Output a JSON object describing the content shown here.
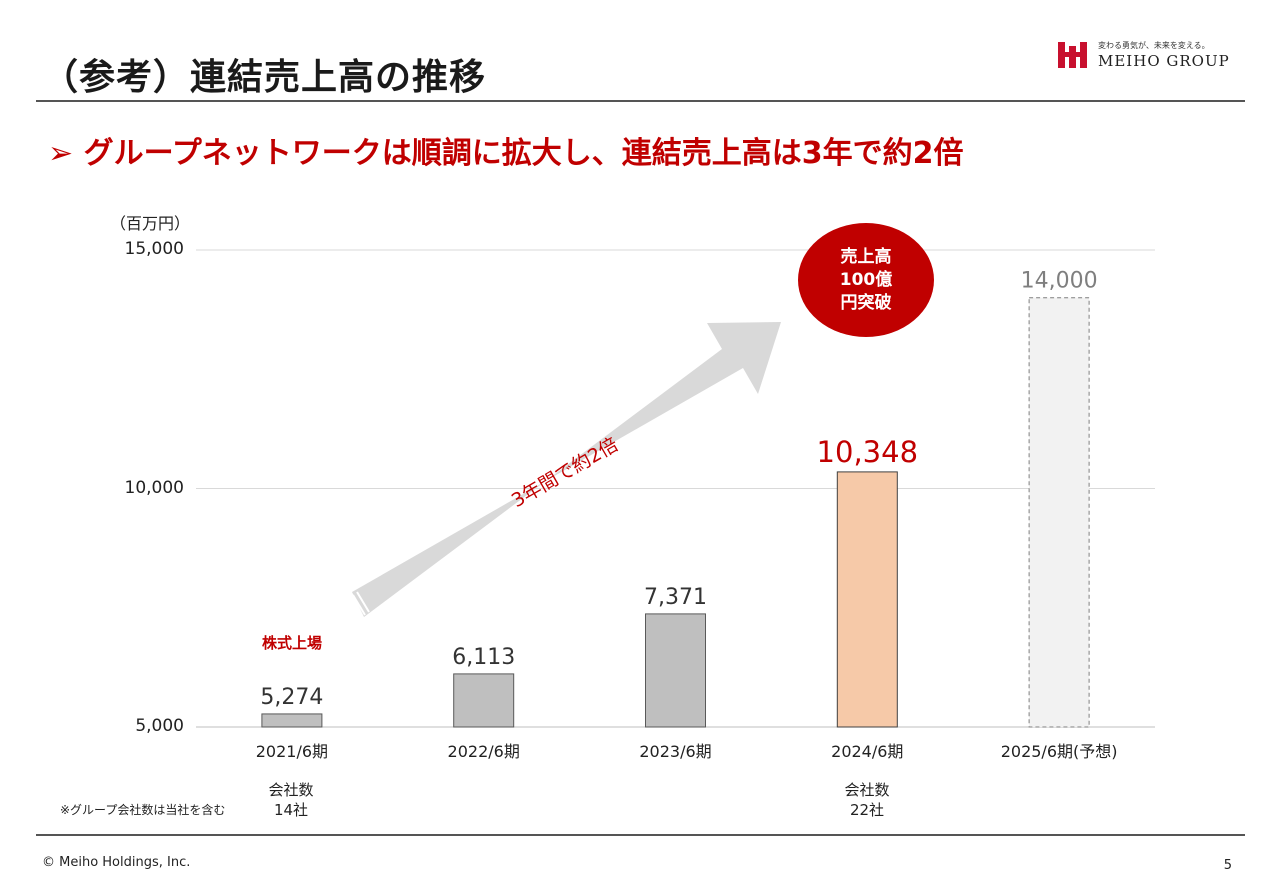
{
  "slide": {
    "title": "（参考）連結売上高の推移",
    "headline": "➢ グループネットワークは順調に拡大し、連結売上高は3年で約2倍",
    "logo_tagline": "変わる勇気が、未来を変える。",
    "logo_name": "MEIHO GROUP",
    "footer": "© Meiho Holdings, Inc.",
    "page_number": "5"
  },
  "chart_data": {
    "type": "bar",
    "unit": "（百万円）",
    "categories": [
      "2021/6期",
      "2022/6期",
      "2023/6期",
      "2024/6期",
      "2025/6期(予想)"
    ],
    "values": [
      5274,
      6113,
      7371,
      10348,
      14000
    ],
    "value_labels": [
      "5,274",
      "6,113",
      "7,371",
      "10,348",
      "14,000"
    ],
    "yticks": [
      5000,
      10000,
      15000
    ],
    "ytick_labels": [
      "5,000",
      "10,000",
      "15,000"
    ],
    "ylim": [
      5000,
      15000
    ],
    "bar_styles": [
      "actual",
      "actual",
      "actual",
      "highlight",
      "forecast"
    ],
    "colors": {
      "actual": "#bfbfbf",
      "highlight": "#f6c9a8",
      "forecast": "#f2f2f2",
      "accent": "#c00000",
      "arrow": "#d9d9d9",
      "grid": "#d9d9d9"
    },
    "annotations": {
      "listing": "株式上場",
      "arrow_text": "3年間で約2倍",
      "bubble": [
        "売上高",
        "100億",
        "円突破"
      ]
    }
  },
  "company_counts": {
    "label": "会社数",
    "y2021": "14社",
    "y2024": "22社",
    "note": "※グループ会社数は当社を含む"
  }
}
